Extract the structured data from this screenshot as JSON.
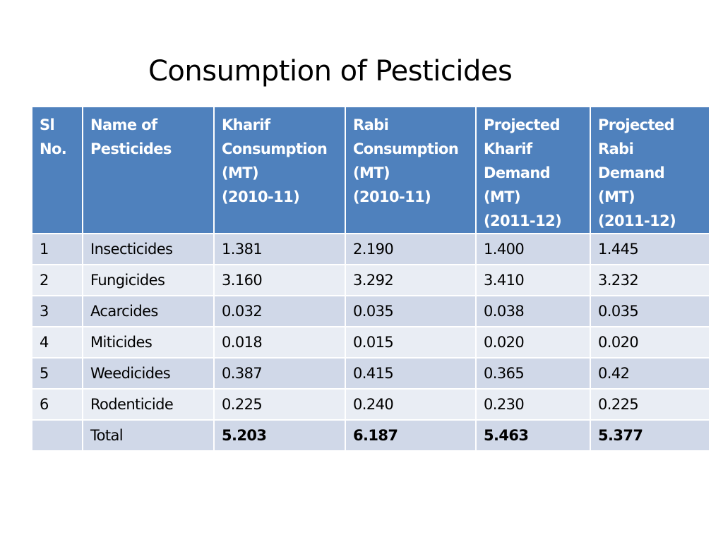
{
  "title": "Consumption of Pesticides",
  "colors": {
    "header_bg": "#4f81bd",
    "row_band_odd": "#d0d8e8",
    "row_band_even": "#e9edf4",
    "header_text": "#ffffff"
  },
  "table": {
    "headers": [
      [
        "Sl",
        "No."
      ],
      [
        "Name of",
        "Pesticides"
      ],
      [
        "Kharif",
        "Consumption",
        "(MT)",
        "(2010-11)"
      ],
      [
        "Rabi",
        "Consumption",
        "(MT)",
        "(2010-11)"
      ],
      [
        "Projected",
        "Kharif",
        "Demand",
        "(MT)",
        "(2011-12)"
      ],
      [
        "Projected",
        "Rabi",
        "Demand",
        "(MT)",
        "(2011-12)"
      ]
    ],
    "rows": [
      [
        "1",
        "Insecticides",
        "1.381",
        "2.190",
        "1.400",
        "1.445"
      ],
      [
        "2",
        "Fungicides",
        "3.160",
        "3.292",
        "3.410",
        "3.232"
      ],
      [
        "3",
        "Acarcides",
        "0.032",
        "0.035",
        "0.038",
        "0.035"
      ],
      [
        "4",
        "Miticides",
        "0.018",
        "0.015",
        "0.020",
        "0.020"
      ],
      [
        "5",
        "Weedicides",
        "0.387",
        "0.415",
        "0.365",
        "0.42"
      ],
      [
        "6",
        "Rodenticide",
        "0.225",
        "0.240",
        "0.230",
        "0.225"
      ],
      [
        "",
        "Total",
        "5.203",
        "6.187",
        "5.463",
        "5.377"
      ]
    ]
  }
}
